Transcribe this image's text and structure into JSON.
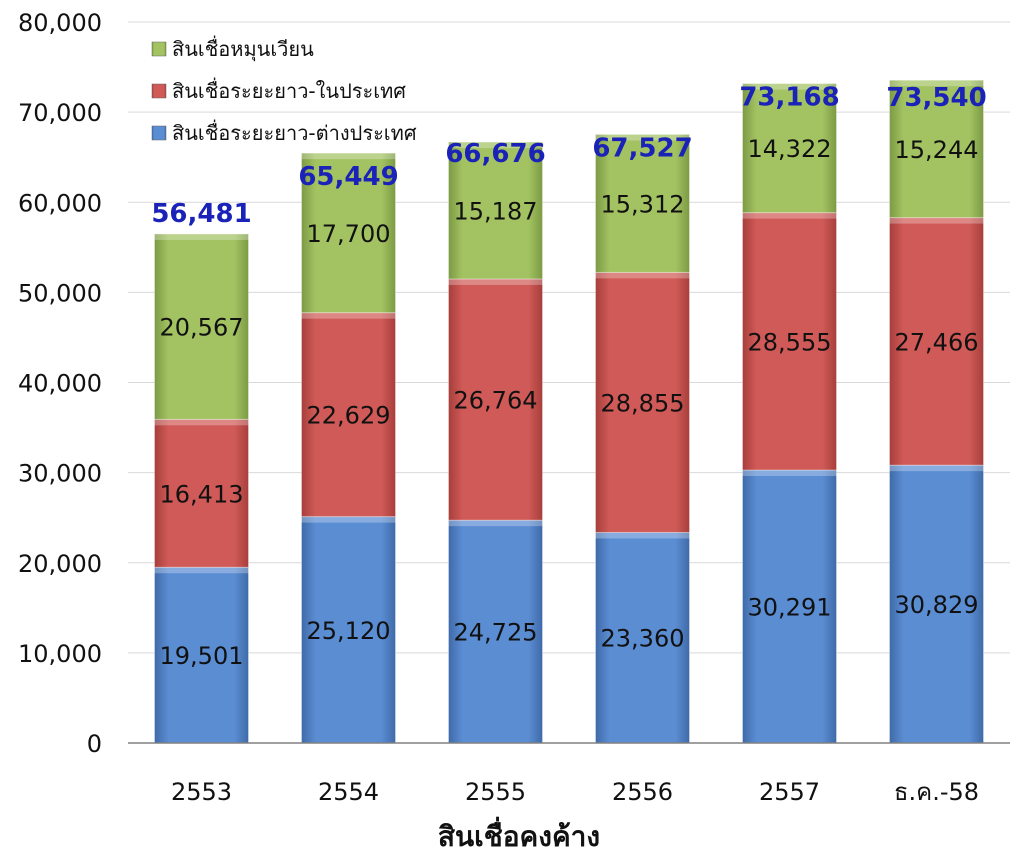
{
  "chart_data": {
    "type": "bar",
    "stacked": true,
    "title": "",
    "xlabel": "สินเชื่อคงค้าง",
    "ylabel": "",
    "ylim": [
      0,
      80000
    ],
    "yticks": [
      "0",
      "10,000",
      "20,000",
      "30,000",
      "40,000",
      "50,000",
      "60,000",
      "70,000",
      "80,000"
    ],
    "categories": [
      "2553",
      "2554",
      "2555",
      "2556",
      "2557",
      "ธ.ค.-58"
    ],
    "series": [
      {
        "name": "สินเชื่อระยะยาว-ต่างประเทศ",
        "color": "#4f81c7",
        "values": [
          19501,
          25120,
          24725,
          23360,
          30291,
          30829
        ],
        "labels": [
          "19,501",
          "25,120",
          "24,725",
          "23,360",
          "30,291",
          "30,829"
        ]
      },
      {
        "name": "สินเชื่อระยะยาว-ในประเทศ",
        "color": "#c94f4c",
        "values": [
          16413,
          22629,
          26764,
          28855,
          28555,
          27466
        ],
        "labels": [
          "16,413",
          "22,629",
          "26,764",
          "28,855",
          "28,555",
          "27,466"
        ]
      },
      {
        "name": "สินเชื่อหมุนเวียน",
        "color": "#9bbb59",
        "values": [
          20567,
          17700,
          15187,
          15312,
          14322,
          15244
        ],
        "labels": [
          "20,567",
          "17,700",
          "15,187",
          "15,312",
          "14,322",
          "15,244"
        ]
      }
    ],
    "totals": [
      56481,
      65449,
      66676,
      67527,
      73168,
      73540
    ],
    "total_labels": [
      "56,481",
      "65,449",
      "66,676",
      "67,527",
      "73,168",
      "73,540"
    ],
    "legend_position": "top-left",
    "grid": true
  }
}
